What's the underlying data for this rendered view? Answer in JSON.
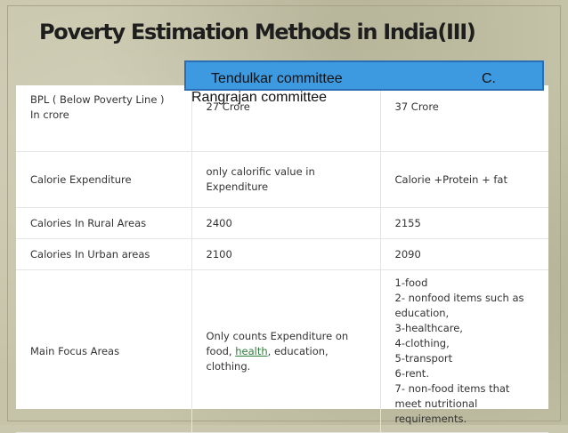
{
  "slide": {
    "title": "Poverty Estimation Methods in India(III)",
    "overlay": {
      "left_text": "Tendulkar  committee",
      "right_text": "C.",
      "second_line": "Rangrajan committee"
    }
  },
  "table": {
    "rows": [
      {
        "label": "BPL ( Below Poverty Line ) In crore",
        "tendulkar": "27 Crore",
        "rangrajan": "37 Crore"
      },
      {
        "label": "Calorie Expenditure",
        "tendulkar": "only calorific value in Expenditure",
        "rangrajan": "Calorie +Protein + fat"
      },
      {
        "label": "Calories In Rural Areas",
        "tendulkar": "2400",
        "rangrajan": "2155"
      },
      {
        "label": "Calories In Urban areas",
        "tendulkar": "2100",
        "rangrajan": "2090"
      },
      {
        "label": "Main Focus Areas",
        "tendulkar_before": "Only counts Expenditure on food,",
        "tendulkar_link": "health",
        "tendulkar_after": ", education, clothing.",
        "rangrajan_items": [
          "1-food",
          "2- nonfood items such as education,",
          "3-healthcare,",
          "4-clothing,",
          "5-transport",
          "6-rent.",
          "7- non-food items that meet nutritional requirements."
        ]
      }
    ]
  }
}
